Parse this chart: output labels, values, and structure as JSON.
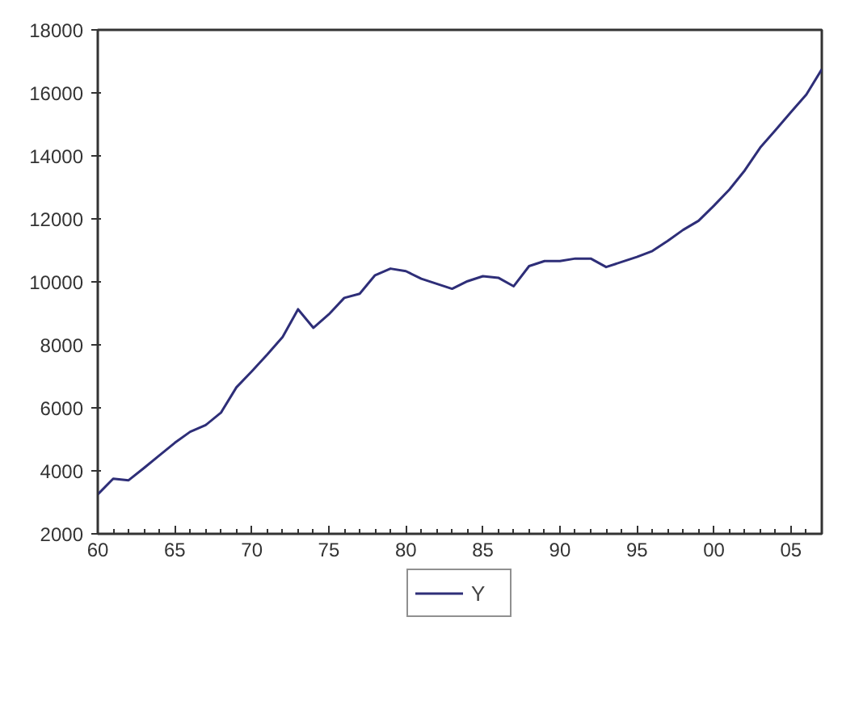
{
  "chart_data": {
    "type": "line",
    "x": [
      1960,
      1961,
      1962,
      1963,
      1964,
      1965,
      1966,
      1967,
      1968,
      1969,
      1970,
      1971,
      1972,
      1973,
      1974,
      1975,
      1976,
      1977,
      1978,
      1979,
      1980,
      1981,
      1982,
      1983,
      1984,
      1985,
      1986,
      1987,
      1988,
      1989,
      1990,
      1991,
      1992,
      1993,
      1994,
      1995,
      1996,
      1997,
      1998,
      1999,
      2000,
      2001,
      2002,
      2003,
      2004,
      2005,
      2006,
      2007
    ],
    "series": [
      {
        "name": "Y",
        "color": "#2e2e78",
        "values": [
          3250,
          3750,
          3700,
          4090,
          4490,
          4890,
          5240,
          5450,
          5850,
          6650,
          7160,
          7690,
          8250,
          9130,
          8540,
          8970,
          9490,
          9620,
          10210,
          10420,
          10340,
          10100,
          9940,
          9780,
          10020,
          10180,
          10130,
          9860,
          10500,
          10660,
          10660,
          10740,
          10740,
          10470,
          10630,
          10790,
          10980,
          11300,
          11650,
          11940,
          12420,
          12930,
          13540,
          14260,
          14820,
          15390,
          15950,
          16750
        ]
      }
    ],
    "xlim": [
      1960,
      2007
    ],
    "ylim": [
      2000,
      18000
    ],
    "xticks": [
      {
        "value": 1960,
        "label": "60"
      },
      {
        "value": 1965,
        "label": "65"
      },
      {
        "value": 1970,
        "label": "70"
      },
      {
        "value": 1975,
        "label": "75"
      },
      {
        "value": 1980,
        "label": "80"
      },
      {
        "value": 1985,
        "label": "85"
      },
      {
        "value": 1990,
        "label": "90"
      },
      {
        "value": 1995,
        "label": "95"
      },
      {
        "value": 2000,
        "label": "00"
      },
      {
        "value": 2005,
        "label": "05"
      }
    ],
    "yticks": [
      2000,
      4000,
      6000,
      8000,
      10000,
      12000,
      14000,
      16000,
      18000
    ],
    "grid": false,
    "legend": "bottom",
    "line_style": "solid"
  }
}
